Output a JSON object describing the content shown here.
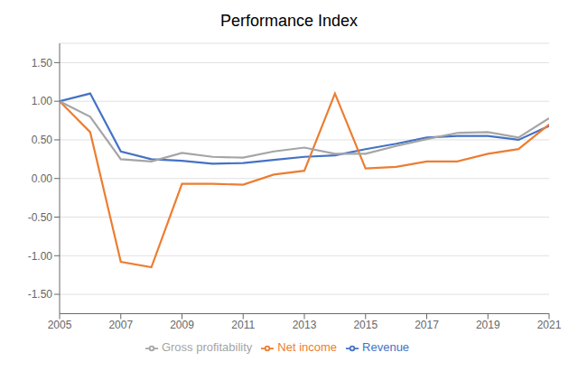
{
  "chart_data": {
    "type": "line",
    "title": "Performance Index",
    "x": [
      2005,
      2006,
      2007,
      2008,
      2009,
      2010,
      2011,
      2012,
      2013,
      2014,
      2015,
      2016,
      2017,
      2018,
      2019,
      2020,
      2021
    ],
    "series": [
      {
        "name": "Revenue",
        "color": "#4472C4",
        "values": [
          1.0,
          1.1,
          0.35,
          0.25,
          0.23,
          0.19,
          0.2,
          0.24,
          0.28,
          0.3,
          0.38,
          0.45,
          0.53,
          0.55,
          0.55,
          0.5,
          0.68
        ]
      },
      {
        "name": "Net income",
        "color": "#ED7D31",
        "values": [
          1.0,
          0.6,
          -1.08,
          -1.15,
          -0.07,
          -0.07,
          -0.08,
          0.05,
          0.1,
          1.1,
          0.13,
          0.15,
          0.22,
          0.22,
          0.32,
          0.38,
          0.7
        ]
      },
      {
        "name": "Gross profitability",
        "color": "#A5A5A5",
        "values": [
          1.0,
          0.8,
          0.25,
          0.22,
          0.33,
          0.28,
          0.27,
          0.35,
          0.4,
          0.32,
          0.32,
          0.42,
          0.51,
          0.59,
          0.6,
          0.53,
          0.78
        ]
      }
    ],
    "xlim": [
      2005,
      2021
    ],
    "xticks": [
      2005,
      2007,
      2009,
      2011,
      2013,
      2015,
      2017,
      2019,
      2021
    ],
    "ylim": [
      -1.75,
      1.75
    ],
    "yticks": [
      {
        "value": -1.5,
        "label": "-1.50"
      },
      {
        "value": -1.0,
        "label": "-1.00"
      },
      {
        "value": -0.5,
        "label": "-0.50"
      },
      {
        "value": 0.0,
        "label": "0.00"
      },
      {
        "value": 0.5,
        "label": "0.50"
      },
      {
        "value": 1.0,
        "label": "1.00"
      },
      {
        "value": 1.5,
        "label": "1.50"
      }
    ],
    "grid": true,
    "legend": "bottom"
  }
}
